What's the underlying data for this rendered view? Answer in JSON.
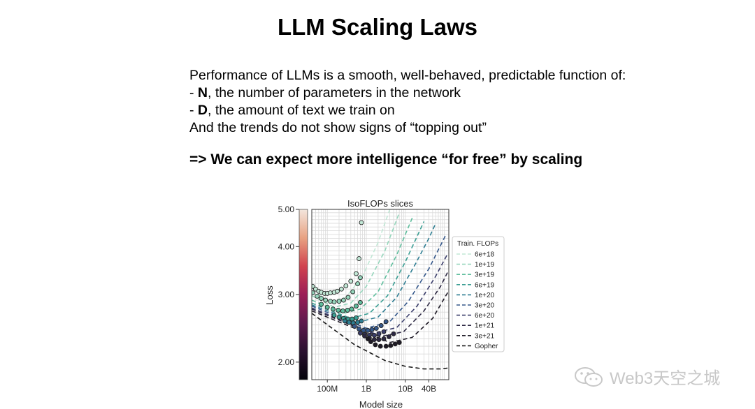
{
  "slide": {
    "title": "LLM Scaling Laws",
    "intro": "Performance of LLMs is a smooth, well-behaved, predictable function of:",
    "bullet_n_key": "N",
    "bullet_n_rest": ", the number of parameters in the network",
    "bullet_d_key": "D",
    "bullet_d_rest": ", the amount of text we train on",
    "trend": "And the trends do not show signs of “topping out”",
    "conclusion": "=> We can expect more intelligence “for free” by scaling"
  },
  "watermark": {
    "text": "Web3天空之城"
  },
  "chart_data": {
    "type": "line",
    "title": "IsoFLOPs slices",
    "xlabel": "Model size",
    "ylabel": "Loss",
    "x_scale": "log",
    "y_scale": "log",
    "xlim": [
      40000000,
      130000000000
    ],
    "ylim": [
      1.8,
      5.0
    ],
    "x_ticks": [
      {
        "value": 100000000,
        "label": "100M"
      },
      {
        "value": 1000000000,
        "label": "1B"
      },
      {
        "value": 10000000000,
        "label": "10B"
      },
      {
        "value": 40000000000,
        "label": "40B"
      }
    ],
    "y_ticks": [
      {
        "value": 2.0,
        "label": "2.00"
      },
      {
        "value": 3.0,
        "label": "3.00"
      },
      {
        "value": 4.0,
        "label": "4.00"
      },
      {
        "value": 5.0,
        "label": "5.00"
      }
    ],
    "grid": true,
    "legend": {
      "title": "Train. FLOPs",
      "placement": "right"
    },
    "colorbar": {
      "placement": "left",
      "colors": [
        "#f3e6dd",
        "#e8a282",
        "#d1434f",
        "#9b1d56",
        "#5e1a4e",
        "#2a1130",
        "#04030b"
      ]
    },
    "series": [
      {
        "name": "6e+18",
        "color": "#c2e8d6",
        "curve": [
          [
            40000000,
            3.07
          ],
          [
            120000000,
            2.88
          ],
          [
            300000000,
            2.95
          ],
          [
            800000000,
            3.35
          ],
          [
            2000000000,
            4.1
          ],
          [
            4000000000,
            5.0
          ]
        ],
        "points": [
          [
            42000000,
            3.15
          ],
          [
            50000000,
            3.1
          ],
          [
            60000000,
            3.06
          ],
          [
            70000000,
            3.04
          ],
          [
            85000000,
            3.02
          ],
          [
            100000000,
            3.02
          ],
          [
            120000000,
            3.03
          ],
          [
            150000000,
            3.04
          ],
          [
            180000000,
            3.06
          ],
          [
            230000000,
            3.1
          ],
          [
            300000000,
            3.16
          ],
          [
            400000000,
            3.25
          ],
          [
            550000000,
            3.4
          ],
          [
            650000000,
            3.72
          ],
          [
            750000000,
            4.62
          ]
        ]
      },
      {
        "name": "1e+19",
        "color": "#96d6bc",
        "curve": [
          [
            40000000,
            2.98
          ],
          [
            150000000,
            2.78
          ],
          [
            400000000,
            2.85
          ],
          [
            1000000000,
            3.15
          ],
          [
            3000000000,
            3.9
          ],
          [
            7000000000,
            4.9
          ]
        ],
        "points": [
          [
            42000000,
            3.03
          ],
          [
            55000000,
            2.97
          ],
          [
            70000000,
            2.93
          ],
          [
            90000000,
            2.9
          ],
          [
            120000000,
            2.88
          ],
          [
            150000000,
            2.87
          ],
          [
            200000000,
            2.88
          ],
          [
            260000000,
            2.9
          ],
          [
            340000000,
            2.95
          ],
          [
            450000000,
            3.05
          ],
          [
            600000000,
            3.2
          ],
          [
            700000000,
            3.32
          ]
        ]
      },
      {
        "name": "3e+19",
        "color": "#5fbe9d",
        "curve": [
          [
            40000000,
            2.9
          ],
          [
            250000000,
            2.68
          ],
          [
            700000000,
            2.75
          ],
          [
            2000000000,
            3.05
          ],
          [
            6000000000,
            3.8
          ],
          [
            15000000000,
            4.75
          ]
        ],
        "points": [
          [
            70000000,
            2.83
          ],
          [
            100000000,
            2.78
          ],
          [
            140000000,
            2.75
          ],
          [
            190000000,
            2.73
          ],
          [
            250000000,
            2.72
          ],
          [
            330000000,
            2.73
          ],
          [
            420000000,
            2.75
          ],
          [
            550000000,
            2.8
          ],
          [
            700000000,
            2.86
          ]
        ]
      },
      {
        "name": "6e+19",
        "color": "#3a9e93",
        "curve": [
          [
            40000000,
            2.85
          ],
          [
            400000000,
            2.6
          ],
          [
            1200000000,
            2.68
          ],
          [
            3500000000,
            2.98
          ],
          [
            10000000000,
            3.65
          ],
          [
            30000000000,
            4.65
          ]
        ],
        "points": [
          [
            150000000,
            2.65
          ],
          [
            200000000,
            2.62
          ],
          [
            260000000,
            2.6
          ],
          [
            340000000,
            2.59
          ],
          [
            430000000,
            2.59
          ],
          [
            550000000,
            2.61
          ]
        ]
      },
      {
        "name": "1e+20",
        "color": "#2f7e93",
        "curve": [
          [
            40000000,
            2.82
          ],
          [
            600000000,
            2.54
          ],
          [
            2000000000,
            2.62
          ],
          [
            6000000000,
            2.95
          ],
          [
            18000000000,
            3.6
          ],
          [
            40000000000,
            4.2
          ],
          [
            60000000000,
            4.6
          ]
        ],
        "points": [
          [
            280000000,
            2.56
          ],
          [
            360000000,
            2.54
          ],
          [
            460000000,
            2.53
          ],
          [
            600000000,
            2.54
          ],
          [
            750000000,
            2.56
          ]
        ]
      },
      {
        "name": "3e+20",
        "color": "#36598c",
        "curve": [
          [
            40000000,
            2.8
          ],
          [
            1000000000,
            2.45
          ],
          [
            4000000000,
            2.55
          ],
          [
            12000000000,
            2.88
          ],
          [
            40000000000,
            3.5
          ],
          [
            110000000000,
            4.3
          ]
        ],
        "points": [
          [
            500000000,
            2.48
          ],
          [
            650000000,
            2.44
          ],
          [
            850000000,
            2.42
          ],
          [
            1100000000,
            2.42
          ],
          [
            1400000000,
            2.43
          ],
          [
            1800000000,
            2.45
          ],
          [
            2400000000,
            2.49
          ],
          [
            3200000000,
            2.55
          ]
        ]
      },
      {
        "name": "6e+20",
        "color": "#3a3d6b",
        "curve": [
          [
            40000000,
            2.77
          ],
          [
            1500000000,
            2.38
          ],
          [
            6000000000,
            2.46
          ],
          [
            20000000000,
            2.8
          ],
          [
            60000000000,
            3.35
          ],
          [
            125000000000,
            3.85
          ]
        ],
        "points": [
          [
            700000000,
            2.38
          ],
          [
            900000000,
            2.36
          ],
          [
            1200000000,
            2.35
          ],
          [
            1600000000,
            2.35
          ],
          [
            2100000000,
            2.37
          ],
          [
            2800000000,
            2.4
          ]
        ]
      },
      {
        "name": "1e+21",
        "color": "#2d2843",
        "curve": [
          [
            40000000,
            2.75
          ],
          [
            2200000000,
            2.33
          ],
          [
            9000000000,
            2.4
          ],
          [
            30000000000,
            2.72
          ],
          [
            80000000000,
            3.15
          ],
          [
            125000000000,
            3.45
          ]
        ],
        "points": [
          [
            900000000,
            2.34
          ],
          [
            1200000000,
            2.31
          ],
          [
            1600000000,
            2.29
          ],
          [
            2100000000,
            2.29
          ],
          [
            2800000000,
            2.3
          ],
          [
            3800000000,
            2.33
          ],
          [
            5000000000,
            2.37
          ]
        ]
      },
      {
        "name": "3e+21",
        "color": "#1e1a26",
        "curve": [
          [
            40000000,
            2.72
          ],
          [
            4000000000,
            2.25
          ],
          [
            15000000000,
            2.32
          ],
          [
            50000000000,
            2.6
          ],
          [
            125000000000,
            3.05
          ]
        ],
        "points": [
          [
            1100000000,
            2.3
          ],
          [
            1300000000,
            2.26
          ],
          [
            1700000000,
            2.22
          ],
          [
            2300000000,
            2.2
          ],
          [
            3200000000,
            2.2
          ],
          [
            4200000000,
            2.21
          ],
          [
            5500000000,
            2.23
          ],
          [
            7000000000,
            2.25
          ]
        ]
      },
      {
        "name": "Gopher",
        "color": "#1a1a1a",
        "curve": [
          [
            40000000,
            2.68
          ],
          [
            500000000,
            2.22
          ],
          [
            3000000000,
            2.02
          ],
          [
            10000000000,
            1.95
          ],
          [
            30000000000,
            1.92
          ],
          [
            80000000000,
            1.92
          ],
          [
            125000000000,
            1.93
          ]
        ],
        "points": []
      }
    ]
  }
}
